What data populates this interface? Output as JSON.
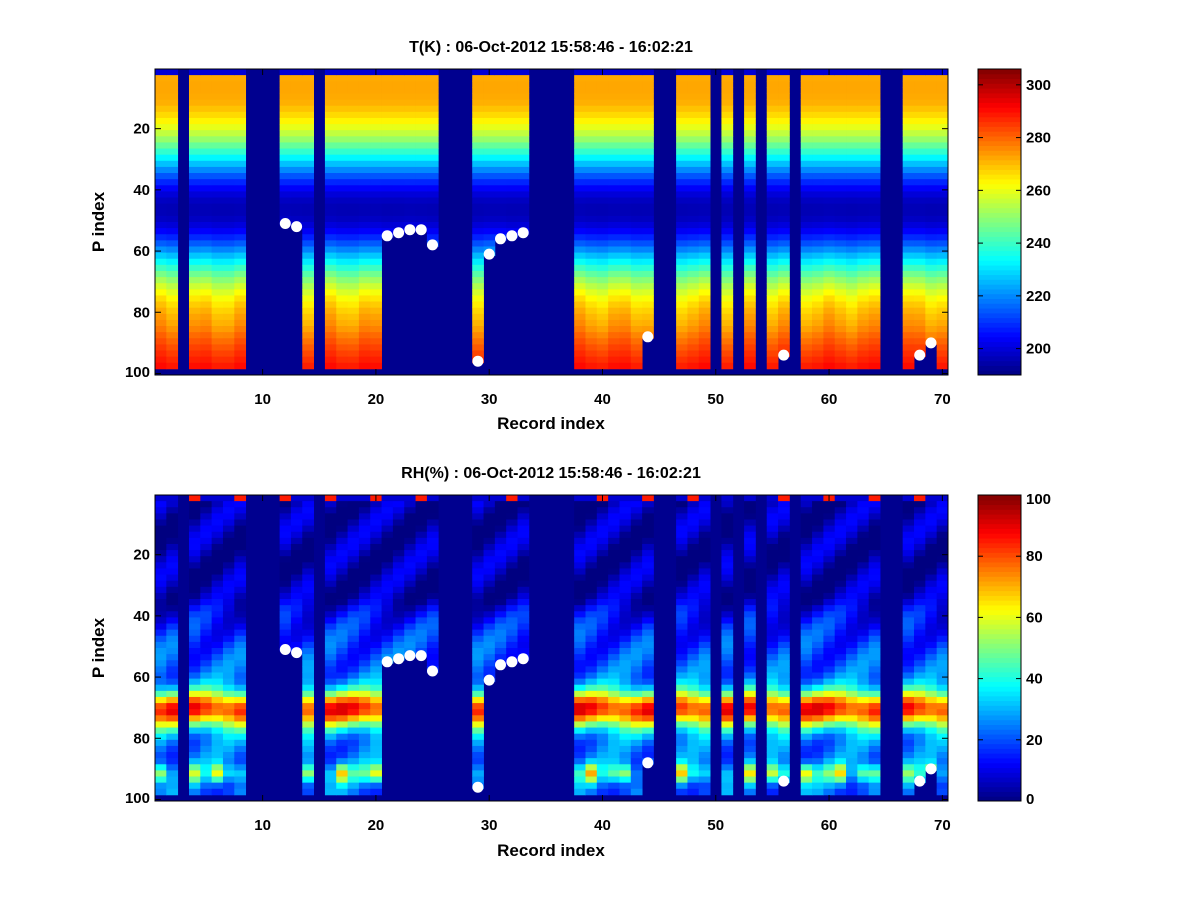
{
  "chart_data": [
    {
      "type": "heatmap",
      "name": "temperature",
      "title": "T(K) : 06-Oct-2012 15:58:46 - 16:02:21",
      "xlabel": "Record index",
      "ylabel": "P index",
      "xlim": [
        0.5,
        70.5
      ],
      "ylim": [
        100,
        1
      ],
      "xticks": [
        10,
        20,
        30,
        40,
        50,
        60,
        70
      ],
      "yticks": [
        20,
        40,
        60,
        80,
        100
      ],
      "colorbar": {
        "range": [
          190,
          306
        ],
        "ticks": [
          200,
          220,
          240,
          260,
          280,
          300
        ]
      },
      "colormap": "jet",
      "grid": false,
      "profile_model": "T(p) = 278 - 82*exp(-((p-47)/22)^2) with surface warming near p>85; value in kelvin",
      "missing_records": [
        3,
        9,
        10,
        11,
        15,
        26,
        27,
        28,
        34,
        35,
        36,
        37,
        45,
        46,
        50,
        52,
        54,
        57,
        65,
        66
      ],
      "ground_markers": [
        {
          "record": 12,
          "p": 51
        },
        {
          "record": 13,
          "p": 52
        },
        {
          "record": 21,
          "p": 55
        },
        {
          "record": 22,
          "p": 54
        },
        {
          "record": 23,
          "p": 53
        },
        {
          "record": 24,
          "p": 53
        },
        {
          "record": 25,
          "p": 58
        },
        {
          "record": 29,
          "p": 96
        },
        {
          "record": 30,
          "p": 61
        },
        {
          "record": 31,
          "p": 56
        },
        {
          "record": 32,
          "p": 55
        },
        {
          "record": 33,
          "p": 54
        },
        {
          "record": 44,
          "p": 88
        },
        {
          "record": 56,
          "p": 94
        },
        {
          "record": 68,
          "p": 94
        },
        {
          "record": 69,
          "p": 90
        }
      ],
      "marker_color": "#ffffff"
    },
    {
      "type": "heatmap",
      "name": "relative-humidity",
      "title": "RH(%) : 06-Oct-2012 15:58:46 - 16:02:21",
      "xlabel": "Record index",
      "ylabel": "P index",
      "xlim": [
        0.5,
        70.5
      ],
      "ylim": [
        100,
        1
      ],
      "xticks": [
        10,
        20,
        30,
        40,
        50,
        60,
        70
      ],
      "yticks": [
        20,
        40,
        60,
        80,
        100
      ],
      "colorbar": {
        "range": [
          0,
          100
        ],
        "ticks": [
          0,
          20,
          40,
          60,
          80,
          100
        ]
      },
      "colormap": "jet",
      "grid": false,
      "profile_model": "RH near 5% above p=35, rising through 20-40% at p=45-60, moist layer 70-90% around p=68-75, secondary moist layer near p=92",
      "missing_records": [
        3,
        9,
        10,
        11,
        15,
        26,
        27,
        28,
        34,
        35,
        36,
        37,
        45,
        46,
        50,
        52,
        54,
        57,
        65,
        66
      ],
      "ground_markers": [
        {
          "record": 12,
          "p": 51
        },
        {
          "record": 13,
          "p": 52
        },
        {
          "record": 21,
          "p": 55
        },
        {
          "record": 22,
          "p": 54
        },
        {
          "record": 23,
          "p": 53
        },
        {
          "record": 24,
          "p": 53
        },
        {
          "record": 25,
          "p": 58
        },
        {
          "record": 29,
          "p": 96
        },
        {
          "record": 30,
          "p": 61
        },
        {
          "record": 31,
          "p": 56
        },
        {
          "record": 32,
          "p": 55
        },
        {
          "record": 33,
          "p": 54
        },
        {
          "record": 44,
          "p": 88
        },
        {
          "record": 56,
          "p": 94
        },
        {
          "record": 68,
          "p": 94
        },
        {
          "record": 69,
          "p": 90
        }
      ],
      "marker_color": "#ffffff"
    }
  ],
  "colors": {
    "background": "#ffffff",
    "missing": "#00008f",
    "marker": "#ffffff",
    "axis": "#000000"
  }
}
